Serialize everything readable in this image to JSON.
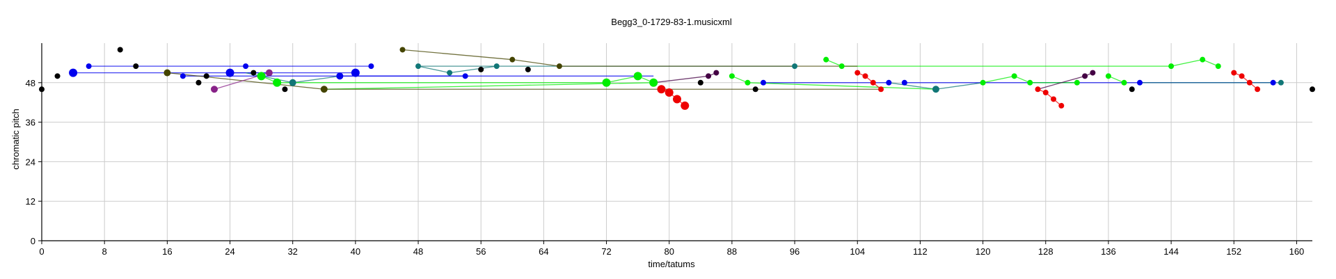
{
  "chart_data": {
    "type": "scatter",
    "title": "Begg3_0-1729-83-1.musicxml",
    "xlabel": "time/tatums",
    "ylabel": "chromatic pitch",
    "xlim": [
      0,
      162
    ],
    "ylim": [
      0,
      60
    ],
    "xticks": [
      0,
      8,
      16,
      24,
      32,
      40,
      48,
      56,
      64,
      72,
      80,
      88,
      96,
      104,
      112,
      120,
      128,
      136,
      144,
      152,
      160
    ],
    "yticks": [
      0,
      12,
      24,
      36,
      48
    ],
    "grid": true,
    "series": [
      {
        "color": "#000000",
        "points": [
          [
            0,
            46,
            4
          ],
          [
            2,
            50,
            4
          ],
          [
            10,
            58,
            4
          ],
          [
            12,
            53,
            4
          ],
          [
            20,
            48,
            4
          ],
          [
            21,
            50,
            4
          ],
          [
            27,
            51,
            4
          ],
          [
            31,
            46,
            4
          ],
          [
            56,
            52,
            4
          ],
          [
            62,
            52,
            4
          ],
          [
            84,
            48,
            4
          ],
          [
            91,
            46,
            4
          ],
          [
            139,
            46,
            4
          ],
          [
            162,
            46,
            4
          ]
        ],
        "segments": []
      },
      {
        "color": "#0000ee",
        "points": [
          [
            4,
            51,
            6
          ],
          [
            6,
            53,
            4
          ],
          [
            18,
            50,
            4
          ],
          [
            24,
            51,
            6
          ],
          [
            26,
            53,
            4
          ],
          [
            32,
            48,
            4
          ],
          [
            38,
            50,
            5
          ],
          [
            40,
            51,
            6
          ],
          [
            42,
            53,
            4
          ],
          [
            54,
            50,
            4
          ],
          [
            92,
            48,
            4
          ],
          [
            108,
            48,
            4
          ],
          [
            110,
            48,
            4
          ],
          [
            140,
            48,
            4
          ],
          [
            157,
            48,
            4
          ]
        ],
        "segments": [
          [
            [
              4,
              51
            ],
            [
              29,
              51
            ]
          ],
          [
            [
              6,
              53
            ],
            [
              42,
              53
            ]
          ],
          [
            [
              18,
              50
            ],
            [
              78,
              50
            ]
          ],
          [
            [
              24,
              51
            ],
            [
              40,
              51
            ]
          ],
          [
            [
              38,
              50
            ],
            [
              54,
              50
            ]
          ],
          [
            [
              92,
              48
            ],
            [
              108,
              48
            ]
          ],
          [
            [
              110,
              48
            ],
            [
              140,
              48
            ]
          ],
          [
            [
              140,
              48
            ],
            [
              157,
              48
            ]
          ]
        ]
      },
      {
        "color": "#117777",
        "points": [
          [
            32,
            48,
            5
          ],
          [
            48,
            53,
            4
          ],
          [
            52,
            51,
            4
          ],
          [
            58,
            53,
            4
          ],
          [
            96,
            53,
            4
          ],
          [
            114,
            46,
            5
          ],
          [
            158,
            48,
            4
          ]
        ],
        "segments": [
          [
            [
              26,
              51
            ],
            [
              32,
              48
            ]
          ],
          [
            [
              32,
              48
            ],
            [
              38,
              50
            ]
          ],
          [
            [
              48,
              53
            ],
            [
              52,
              51
            ]
          ],
          [
            [
              52,
              51
            ],
            [
              58,
              53
            ]
          ],
          [
            [
              48,
              53
            ],
            [
              96,
              53
            ]
          ],
          [
            [
              108,
              48
            ],
            [
              114,
              46
            ]
          ],
          [
            [
              114,
              46
            ],
            [
              120,
              48
            ]
          ],
          [
            [
              140,
              48
            ],
            [
              158,
              48
            ]
          ]
        ]
      },
      {
        "color": "#00ee00",
        "points": [
          [
            28,
            50,
            6
          ],
          [
            30,
            48,
            6
          ],
          [
            72,
            48,
            6
          ],
          [
            76,
            50,
            6
          ],
          [
            78,
            48,
            6
          ],
          [
            88,
            50,
            4
          ],
          [
            90,
            48,
            4
          ],
          [
            100,
            55,
            4
          ],
          [
            102,
            53,
            4
          ],
          [
            120,
            48,
            4
          ],
          [
            124,
            50,
            4
          ],
          [
            126,
            48,
            4
          ],
          [
            132,
            48,
            4
          ],
          [
            136,
            50,
            4
          ],
          [
            138,
            48,
            4
          ],
          [
            144,
            53,
            4
          ],
          [
            148,
            55,
            4
          ],
          [
            150,
            53,
            4
          ]
        ],
        "segments": [
          [
            [
              28,
              50
            ],
            [
              30,
              48
            ]
          ],
          [
            [
              30,
              48
            ],
            [
              72,
              48
            ]
          ],
          [
            [
              36,
              46
            ],
            [
              78,
              48
            ]
          ],
          [
            [
              72,
              48
            ],
            [
              76,
              50
            ]
          ],
          [
            [
              76,
              50
            ],
            [
              78,
              48
            ]
          ],
          [
            [
              88,
              50
            ],
            [
              90,
              48
            ]
          ],
          [
            [
              90,
              48
            ],
            [
              114,
              46
            ]
          ],
          [
            [
              100,
              55
            ],
            [
              102,
              53
            ]
          ],
          [
            [
              102,
              53
            ],
            [
              144,
              53
            ]
          ],
          [
            [
              120,
              48
            ],
            [
              124,
              50
            ]
          ],
          [
            [
              124,
              50
            ],
            [
              126,
              48
            ]
          ],
          [
            [
              126,
              48
            ],
            [
              132,
              48
            ]
          ],
          [
            [
              136,
              50
            ],
            [
              138,
              48
            ]
          ],
          [
            [
              144,
              53
            ],
            [
              148,
              55
            ]
          ],
          [
            [
              148,
              55
            ],
            [
              150,
              53
            ]
          ]
        ]
      },
      {
        "color": "#ee0000",
        "points": [
          [
            79,
            46,
            6
          ],
          [
            80,
            45,
            6
          ],
          [
            81,
            43,
            6
          ],
          [
            82,
            41,
            6
          ],
          [
            104,
            51,
            4
          ],
          [
            105,
            50,
            4
          ],
          [
            106,
            48,
            4
          ],
          [
            107,
            46,
            4
          ],
          [
            127,
            46,
            4
          ],
          [
            128,
            45,
            4
          ],
          [
            129,
            43,
            4
          ],
          [
            130,
            41,
            4
          ],
          [
            152,
            51,
            4
          ],
          [
            153,
            50,
            4
          ],
          [
            154,
            48,
            4
          ],
          [
            155,
            46,
            4
          ]
        ],
        "segments": [
          [
            [
              79,
              46
            ],
            [
              80,
              45
            ]
          ],
          [
            [
              80,
              45
            ],
            [
              81,
              43
            ]
          ],
          [
            [
              81,
              43
            ],
            [
              82,
              41
            ]
          ],
          [
            [
              104,
              51
            ],
            [
              105,
              50
            ]
          ],
          [
            [
              105,
              50
            ],
            [
              106,
              48
            ]
          ],
          [
            [
              106,
              48
            ],
            [
              107,
              46
            ]
          ],
          [
            [
              127,
              46
            ],
            [
              128,
              45
            ]
          ],
          [
            [
              128,
              45
            ],
            [
              129,
              43
            ]
          ],
          [
            [
              129,
              43
            ],
            [
              130,
              41
            ]
          ],
          [
            [
              152,
              51
            ],
            [
              153,
              50
            ]
          ],
          [
            [
              153,
              50
            ],
            [
              154,
              48
            ]
          ],
          [
            [
              154,
              48
            ],
            [
              155,
              46
            ]
          ]
        ]
      },
      {
        "color": "#444400",
        "points": [
          [
            16,
            51,
            5
          ],
          [
            36,
            46,
            5
          ],
          [
            46,
            58,
            4
          ],
          [
            60,
            55,
            4
          ],
          [
            66,
            53,
            4
          ]
        ],
        "segments": [
          [
            [
              16,
              51
            ],
            [
              36,
              46
            ]
          ],
          [
            [
              36,
              46
            ],
            [
              107,
              46
            ]
          ],
          [
            [
              46,
              58
            ],
            [
              60,
              55
            ]
          ],
          [
            [
              60,
              55
            ],
            [
              66,
              53
            ]
          ],
          [
            [
              66,
              53
            ],
            [
              104,
              53
            ]
          ]
        ]
      },
      {
        "color": "#882288",
        "points": [
          [
            22,
            46,
            5
          ],
          [
            29,
            51,
            5
          ]
        ],
        "segments": [
          [
            [
              22,
              46
            ],
            [
              29,
              51
            ]
          ]
        ]
      },
      {
        "color": "#440044",
        "points": [
          [
            85,
            50,
            4
          ],
          [
            86,
            51,
            4
          ],
          [
            133,
            50,
            4
          ],
          [
            134,
            51,
            4
          ]
        ],
        "segments": [
          [
            [
              78,
              48
            ],
            [
              85,
              50
            ]
          ],
          [
            [
              85,
              50
            ],
            [
              86,
              51
            ]
          ],
          [
            [
              127,
              46
            ],
            [
              133,
              50
            ]
          ],
          [
            [
              133,
              50
            ],
            [
              134,
              51
            ]
          ]
        ]
      }
    ]
  }
}
